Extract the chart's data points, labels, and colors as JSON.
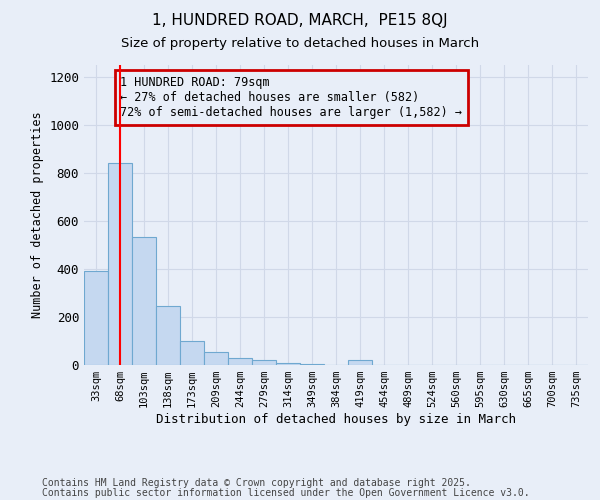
{
  "title1": "1, HUNDRED ROAD, MARCH,  PE15 8QJ",
  "title2": "Size of property relative to detached houses in March",
  "xlabel": "Distribution of detached houses by size in March",
  "ylabel": "Number of detached properties",
  "categories": [
    "33sqm",
    "68sqm",
    "103sqm",
    "138sqm",
    "173sqm",
    "209sqm",
    "244sqm",
    "279sqm",
    "314sqm",
    "349sqm",
    "384sqm",
    "419sqm",
    "454sqm",
    "489sqm",
    "524sqm",
    "560sqm",
    "595sqm",
    "630sqm",
    "665sqm",
    "700sqm",
    "735sqm"
  ],
  "values": [
    390,
    840,
    535,
    245,
    100,
    55,
    30,
    20,
    10,
    5,
    0,
    20,
    0,
    0,
    0,
    0,
    0,
    0,
    0,
    0,
    0
  ],
  "bar_color": "#c5d8f0",
  "bar_edge_color": "#6fa8d0",
  "red_line_x": 1.0,
  "ylim": [
    0,
    1250
  ],
  "yticks": [
    0,
    200,
    400,
    600,
    800,
    1000,
    1200
  ],
  "annotation_text": "1 HUNDRED ROAD: 79sqm\n← 27% of detached houses are smaller (582)\n72% of semi-detached houses are larger (1,582) →",
  "annotation_box_color": "#cc0000",
  "footer1": "Contains HM Land Registry data © Crown copyright and database right 2025.",
  "footer2": "Contains public sector information licensed under the Open Government Licence v3.0.",
  "bg_color": "#e8eef8",
  "grid_color": "#d0d8e8",
  "title1_fontsize": 11,
  "title2_fontsize": 9.5
}
